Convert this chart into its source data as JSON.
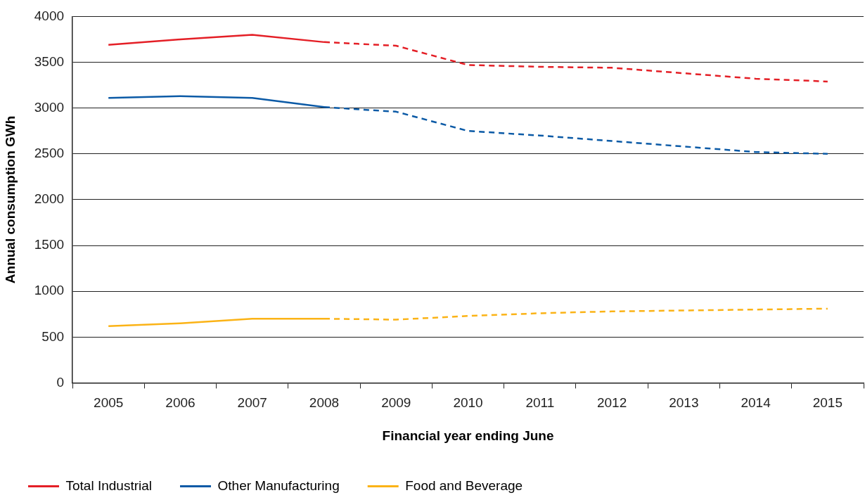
{
  "chart_data": {
    "type": "line",
    "xlabel": "Financial year ending June",
    "ylabel": "Annual consumption GWh",
    "categories": [
      "2005",
      "2006",
      "2007",
      "2008",
      "2009",
      "2010",
      "2011",
      "2012",
      "2013",
      "2014",
      "2015"
    ],
    "ylim": [
      0,
      4000
    ],
    "yticks": [
      0,
      500,
      1000,
      1500,
      2000,
      2500,
      3000,
      3500,
      4000
    ],
    "grid": "y",
    "legend": "bottom left",
    "marker": "none",
    "series": [
      {
        "name": "Total Industrial",
        "color": "#e41f26",
        "line_style": "solid",
        "values": [
          3690,
          3750,
          3800,
          3720,
          null,
          null,
          null,
          null,
          null,
          null,
          null
        ]
      },
      {
        "color": "#e41f26",
        "line_style": "dashed",
        "values": [
          null,
          null,
          null,
          3720,
          3680,
          3470,
          3450,
          3440,
          3380,
          3320,
          3290
        ]
      },
      {
        "name": "Other Manufacturing",
        "color": "#0b5aa6",
        "line_style": "solid",
        "values": [
          3110,
          3130,
          3110,
          3010,
          null,
          null,
          null,
          null,
          null,
          null,
          null
        ]
      },
      {
        "color": "#0b5aa6",
        "line_style": "dashed",
        "values": [
          null,
          null,
          null,
          3010,
          2960,
          2750,
          2700,
          2640,
          2580,
          2520,
          2500
        ]
      },
      {
        "name": "Food and Beverage",
        "color": "#fbb316",
        "line_style": "solid",
        "values": [
          620,
          650,
          700,
          700,
          null,
          null,
          null,
          null,
          null,
          null,
          null
        ]
      },
      {
        "color": "#fbb316",
        "line_style": "dashed",
        "values": [
          null,
          null,
          null,
          700,
          690,
          730,
          760,
          780,
          790,
          800,
          810
        ]
      }
    ]
  }
}
